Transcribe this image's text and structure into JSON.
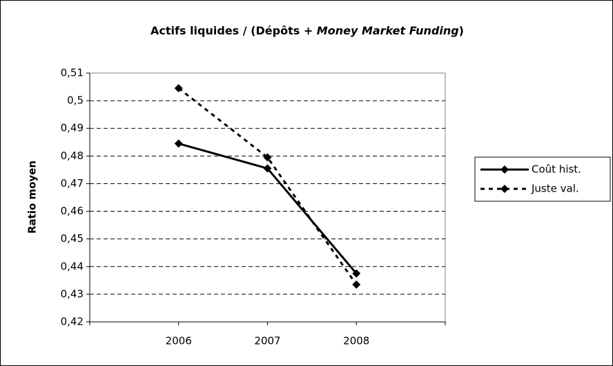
{
  "chart_data": {
    "type": "line",
    "title": [
      "Actifs liquides / (Dépôts + ",
      "Money Market Funding",
      ")"
    ],
    "ylabel": "Ratio moyen",
    "x": [
      2006,
      2007,
      2008
    ],
    "xlim": [
      2005,
      2009
    ],
    "xticks": [
      2006,
      2007,
      2008
    ],
    "ylim": [
      0.42,
      0.51
    ],
    "yticks": [
      {
        "value": 0.42,
        "label": "0,42"
      },
      {
        "value": 0.43,
        "label": "0,43"
      },
      {
        "value": 0.44,
        "label": "0,44"
      },
      {
        "value": 0.45,
        "label": "0,45"
      },
      {
        "value": 0.46,
        "label": "0,46"
      },
      {
        "value": 0.47,
        "label": "0,47"
      },
      {
        "value": 0.48,
        "label": "0,48"
      },
      {
        "value": 0.49,
        "label": "0,49"
      },
      {
        "value": 0.5,
        "label": "0,5"
      },
      {
        "value": 0.51,
        "label": "0,51"
      }
    ],
    "grid": true,
    "legend": "right",
    "series": [
      {
        "name": "Coût hist.",
        "color": "#000000",
        "line_style": "solid",
        "values": [
          0.4845,
          0.4755,
          0.4375
        ]
      },
      {
        "name": "Juste val.",
        "color": "#000000",
        "line_style": "dashed",
        "values": [
          0.5045,
          0.4795,
          0.4335
        ]
      }
    ]
  }
}
